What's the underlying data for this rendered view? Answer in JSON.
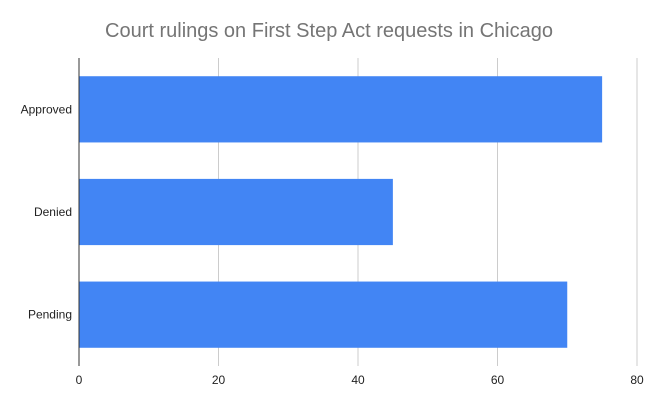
{
  "chart_data": {
    "type": "bar",
    "orientation": "horizontal",
    "title": "Court rulings on First Step Act requests in Chicago",
    "categories": [
      "Approved",
      "Denied",
      "Pending"
    ],
    "values": [
      75,
      45,
      70
    ],
    "xlim": [
      0,
      80
    ],
    "xticks": [
      "0",
      "20",
      "40",
      "60",
      "80"
    ],
    "xlabel": "",
    "ylabel": "",
    "grid": true,
    "legend": "none",
    "bar_color": "#4285f4",
    "grid_color": "#cccccc",
    "axis_color": "#333333"
  }
}
